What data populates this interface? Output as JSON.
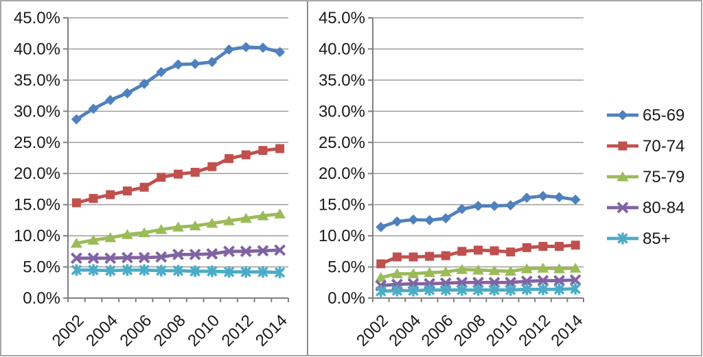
{
  "figure": {
    "background": "#FFFFFF",
    "outer_border_color": "#A6A6A6",
    "panel_divider_color": "#8C8C8C",
    "grid_color": "#9C9C9C",
    "axis_color": "#7F7F7F",
    "text_color": "#1A1A1A"
  },
  "axes": {
    "y_tick_labels": [
      "45.0%",
      "40.0%",
      "35.0%",
      "30.0%",
      "25.0%",
      "20.0%",
      "15.0%",
      "10.0%",
      "5.0%",
      "0.0%"
    ],
    "x_tick_labels": [
      "2002",
      "2004",
      "2006",
      "2008",
      "2010",
      "2012",
      "2014"
    ]
  },
  "legend": {
    "position": "right",
    "items": [
      {
        "label": "65-69",
        "color": "#4F81BD",
        "marker": "diamond"
      },
      {
        "label": "70-74",
        "color": "#C0504D",
        "marker": "square"
      },
      {
        "label": "75-79",
        "color": "#9BBB59",
        "marker": "triangle"
      },
      {
        "label": "80-84",
        "color": "#8064A2",
        "marker": "x"
      },
      {
        "label": "85+",
        "color": "#4BACC6",
        "marker": "asterisk"
      }
    ]
  },
  "chart_data": [
    {
      "type": "line",
      "panel": "left",
      "title": "",
      "xlabel": "",
      "ylabel": "",
      "grid": true,
      "ylim": [
        0,
        45
      ],
      "y_step": 5,
      "y_tick_format": "0.0%",
      "categories": [
        "2002",
        "2003",
        "2004",
        "2005",
        "2006",
        "2007",
        "2008",
        "2009",
        "2010",
        "2011",
        "2012",
        "2013",
        "2014"
      ],
      "labeled_categories": [
        "2002",
        "2004",
        "2006",
        "2008",
        "2010",
        "2012",
        "2014"
      ],
      "legend_position": "shared-right",
      "series": [
        {
          "name": "65-69",
          "color": "#4F81BD",
          "marker": "diamond",
          "values": [
            28.7,
            30.4,
            31.8,
            32.9,
            34.4,
            36.3,
            37.5,
            37.6,
            37.9,
            39.9,
            40.3,
            40.2,
            39.5
          ]
        },
        {
          "name": "70-74",
          "color": "#C0504D",
          "marker": "square",
          "values": [
            15.3,
            16.0,
            16.6,
            17.2,
            17.8,
            19.4,
            19.9,
            20.2,
            21.1,
            22.4,
            23.0,
            23.7,
            24.0
          ]
        },
        {
          "name": "75-79",
          "color": "#9BBB59",
          "marker": "triangle",
          "values": [
            8.8,
            9.3,
            9.7,
            10.2,
            10.5,
            11.0,
            11.4,
            11.6,
            12.0,
            12.4,
            12.8,
            13.2,
            13.5
          ]
        },
        {
          "name": "80-84",
          "color": "#8064A2",
          "marker": "x",
          "values": [
            6.4,
            6.4,
            6.4,
            6.5,
            6.5,
            6.6,
            7.0,
            7.0,
            7.1,
            7.5,
            7.5,
            7.6,
            7.7
          ]
        },
        {
          "name": "85+",
          "color": "#4BACC6",
          "marker": "asterisk",
          "values": [
            4.5,
            4.5,
            4.4,
            4.5,
            4.5,
            4.4,
            4.4,
            4.3,
            4.3,
            4.2,
            4.2,
            4.2,
            4.1
          ]
        }
      ]
    },
    {
      "type": "line",
      "panel": "right",
      "title": "",
      "xlabel": "",
      "ylabel": "",
      "grid": true,
      "ylim": [
        0,
        45
      ],
      "y_step": 5,
      "y_tick_format": "0.0%",
      "categories": [
        "2002",
        "2003",
        "2004",
        "2005",
        "2006",
        "2007",
        "2008",
        "2009",
        "2010",
        "2011",
        "2012",
        "2013",
        "2014"
      ],
      "labeled_categories": [
        "2002",
        "2004",
        "2006",
        "2008",
        "2010",
        "2012",
        "2014"
      ],
      "legend_position": "shared-right",
      "series": [
        {
          "name": "65-69",
          "color": "#4F81BD",
          "marker": "diamond",
          "values": [
            11.4,
            12.3,
            12.6,
            12.5,
            12.8,
            14.3,
            14.8,
            14.8,
            14.9,
            16.1,
            16.4,
            16.2,
            15.8
          ]
        },
        {
          "name": "70-74",
          "color": "#C0504D",
          "marker": "square",
          "values": [
            5.5,
            6.6,
            6.6,
            6.7,
            6.8,
            7.5,
            7.7,
            7.6,
            7.4,
            8.1,
            8.3,
            8.3,
            8.5
          ]
        },
        {
          "name": "75-79",
          "color": "#9BBB59",
          "marker": "triangle",
          "values": [
            3.3,
            3.9,
            3.9,
            4.1,
            4.2,
            4.6,
            4.5,
            4.4,
            4.3,
            4.7,
            4.8,
            4.7,
            4.8
          ]
        },
        {
          "name": "80-84",
          "color": "#8064A2",
          "marker": "x",
          "values": [
            2.0,
            2.2,
            2.3,
            2.3,
            2.4,
            2.5,
            2.5,
            2.5,
            2.5,
            2.7,
            2.8,
            2.8,
            2.9
          ]
        },
        {
          "name": "85+",
          "color": "#4BACC6",
          "marker": "asterisk",
          "values": [
            1.1,
            1.2,
            1.2,
            1.3,
            1.3,
            1.3,
            1.3,
            1.3,
            1.3,
            1.4,
            1.4,
            1.4,
            1.5
          ]
        }
      ]
    }
  ]
}
